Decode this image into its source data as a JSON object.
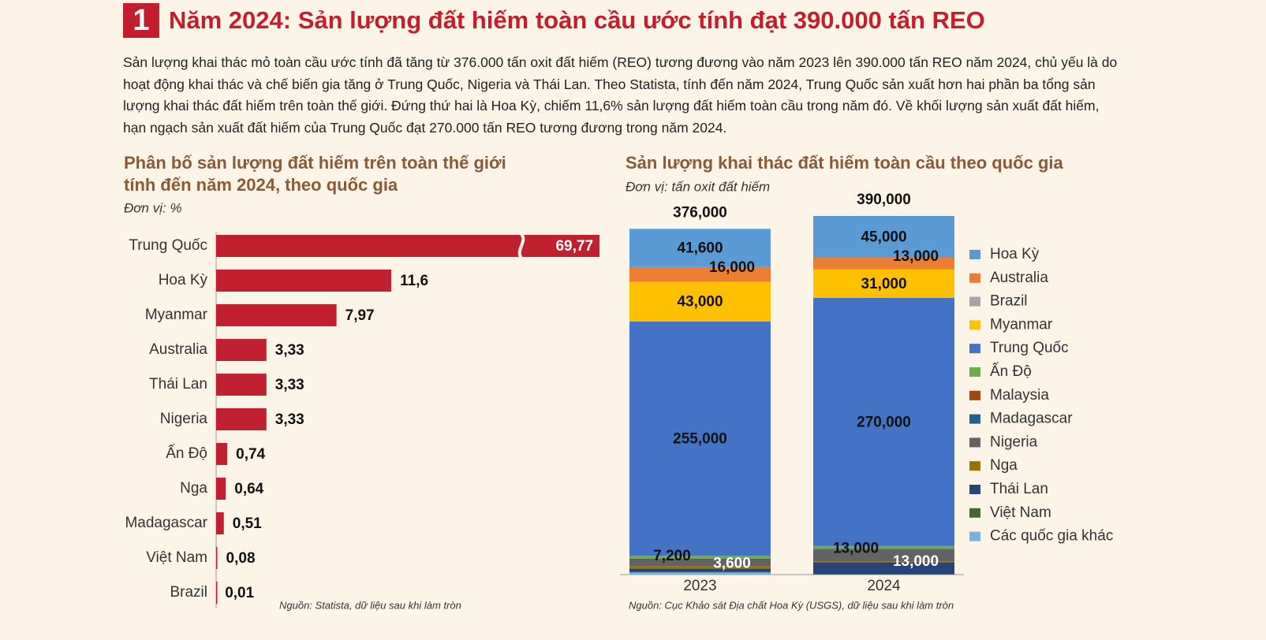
{
  "header": {
    "number": "1",
    "title": "Năm 2024: Sản lượng đất hiếm toàn cầu ước tính đạt 390.000 tấn REO"
  },
  "intro": "Sản lượng khai thác mỏ toàn cầu ước tính đã tăng từ 376.000 tấn oxit đất hiếm (REO) tương đương vào năm 2023 lên 390.000 tấn REO năm 2024, chủ yếu là do hoạt động khai thác và chế biến gia tăng ở Trung Quốc, Nigeria và Thái Lan. Theo Statista, tính đến năm 2024, Trung Quốc sản xuất hơn hai phần ba tổng sản lượng khai thác đất hiếm trên toàn thế giới. Đứng thứ hai là Hoa Kỳ, chiếm 11,6% sản lượng đất hiếm toàn cầu trong năm đó. Về khối lượng sản xuất đất hiếm, hạn ngạch sản xuất đất hiếm của Trung Quốc đạt 270.000 tấn REO tương đương trong năm 2024.",
  "chart_data": [
    {
      "type": "bar",
      "orientation": "horizontal",
      "title": [
        "Phân bố sản lượng đất hiếm trên toàn thế giới",
        "tính đến năm 2024, theo quốc gia"
      ],
      "subtitle": "Đơn vị: %",
      "source": "Nguồn: Statista, dữ liệu sau khi làm tròn",
      "categories": [
        "Trung Quốc",
        "Hoa Kỳ",
        "Myanmar",
        "Australia",
        "Thái Lan",
        "Nigeria",
        "Ấn Độ",
        "Nga",
        "Madagascar",
        "Việt Nam",
        "Brazil"
      ],
      "values": [
        69.77,
        11.6,
        7.97,
        3.33,
        3.33,
        3.33,
        0.74,
        0.64,
        0.51,
        0.08,
        0.01
      ],
      "value_labels": [
        "69,77",
        "11,6",
        "7,97",
        "3,33",
        "3,33",
        "3,33",
        "0,74",
        "0,64",
        "0,51",
        "0,08",
        "0,01"
      ],
      "color": "#c0202f"
    },
    {
      "type": "stacked_bar",
      "title": "Sản lượng khai thác đất hiếm toàn cầu theo quốc gia",
      "subtitle": "Đơn vị: tấn oxit đất hiếm",
      "source": "Nguồn: Cục Khảo sát Địa chất Hoa Kỳ (USGS), dữ liệu sau khi làm tròn",
      "categories": [
        "2023",
        "2024"
      ],
      "totals": [
        376000,
        390000
      ],
      "total_labels": [
        "376,000",
        "390,000"
      ],
      "series": [
        {
          "name": "Hoa Kỳ",
          "color": "#5b9bd5",
          "values": [
            41600,
            45000
          ],
          "value_labels": [
            "41,600",
            "45,000"
          ]
        },
        {
          "name": "Australia",
          "color": "#ed7d31",
          "values": [
            16000,
            13000
          ],
          "value_labels": [
            "16,000",
            "13,000"
          ]
        },
        {
          "name": "Brazil",
          "color": "#a5a5a5",
          "values": [
            80,
            20
          ],
          "value_labels": [
            null,
            null
          ]
        },
        {
          "name": "Myanmar",
          "color": "#ffc000",
          "values": [
            43000,
            31000
          ],
          "value_labels": [
            "43,000",
            "31,000"
          ]
        },
        {
          "name": "Trung Quốc",
          "color": "#4472c4",
          "values": [
            255000,
            270000
          ],
          "value_labels": [
            "255,000",
            "270,000"
          ]
        },
        {
          "name": "Ấn Độ",
          "color": "#70ad47",
          "values": [
            2900,
            2900
          ],
          "value_labels": [
            null,
            null
          ]
        },
        {
          "name": "Malaysia",
          "color": "#9e480e",
          "values": [
            130,
            130
          ],
          "value_labels": [
            null,
            null
          ]
        },
        {
          "name": "Madagascar",
          "color": "#255e91",
          "values": [
            960,
            550
          ],
          "value_labels": [
            null,
            null
          ]
        },
        {
          "name": "Nigeria",
          "color": "#636363",
          "values": [
            7200,
            13000
          ],
          "value_labels": [
            "7,200",
            "13,000"
          ]
        },
        {
          "name": "Nga",
          "color": "#997300",
          "values": [
            2600,
            1000
          ],
          "value_labels": [
            null,
            null
          ]
        },
        {
          "name": "Thái Lan",
          "color": "#264478",
          "values": [
            3600,
            13000
          ],
          "value_labels": [
            "3,600",
            "13,000"
          ]
        },
        {
          "name": "Việt Nam",
          "color": "#43682b",
          "values": [
            600,
            300
          ],
          "value_labels": [
            null,
            null
          ]
        },
        {
          "name": "Các quốc gia khác",
          "color": "#7cafdd",
          "values": [
            2330,
            100
          ],
          "value_labels": [
            null,
            null
          ]
        }
      ]
    }
  ]
}
